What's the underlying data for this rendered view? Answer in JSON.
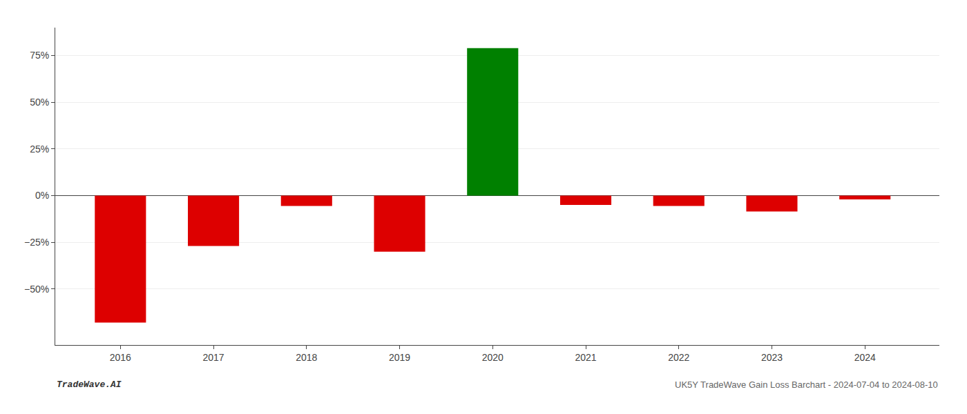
{
  "chart_data": {
    "type": "bar",
    "x": [
      2016,
      2017,
      2018,
      2019,
      2020,
      2021,
      2022,
      2023,
      2024
    ],
    "values": [
      -68.0,
      -27.0,
      -5.5,
      -30.0,
      79.0,
      -5.0,
      -5.5,
      -8.5,
      -2.0
    ],
    "colors": [
      "#dd0000",
      "#dd0000",
      "#dd0000",
      "#dd0000",
      "#008000",
      "#dd0000",
      "#dd0000",
      "#dd0000",
      "#dd0000"
    ],
    "xlim": [
      2015.3,
      2024.8
    ],
    "xticks": [
      2016,
      2017,
      2018,
      2019,
      2020,
      2021,
      2022,
      2023,
      2024
    ],
    "ylim": [
      -80,
      90
    ],
    "yticks": [
      {
        "value": -50,
        "label": "−50%"
      },
      {
        "value": -25,
        "label": "−25%"
      },
      {
        "value": 0,
        "label": "0%"
      },
      {
        "value": 25,
        "label": "25%"
      },
      {
        "value": 50,
        "label": "50%"
      },
      {
        "value": 75,
        "label": "75%"
      }
    ],
    "grid": true,
    "annotations": [
      "TradeWave.AI",
      "UK5Y TradeWave Gain Loss Barchart - 2024-07-04 to 2024-08-10"
    ]
  }
}
